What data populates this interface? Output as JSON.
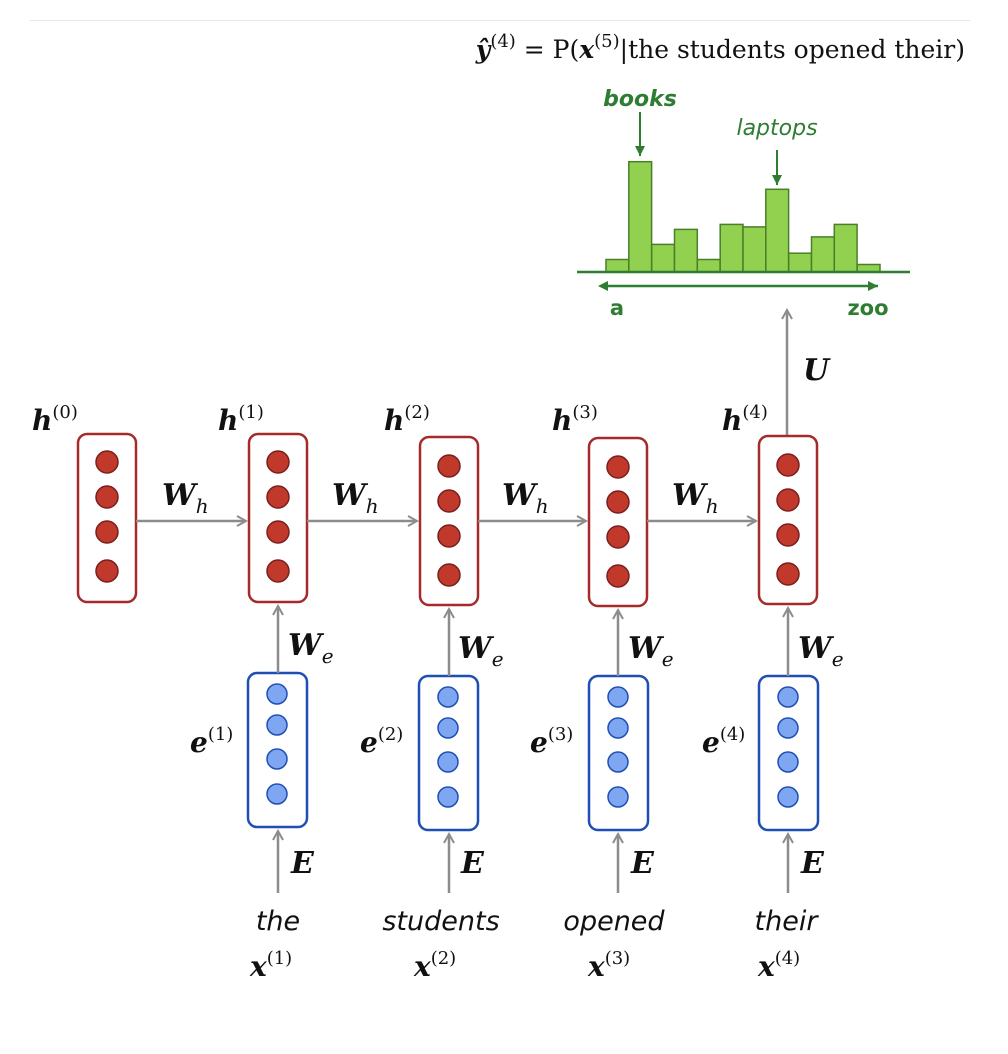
{
  "title": {
    "yhat": "ŷ",
    "yhat_sup": "(4)",
    "eq": " = P(",
    "x": "x",
    "x_sup": "(5)",
    "rest": "|the students opened their)"
  },
  "histogram": {
    "peak_labels": [
      "books",
      "laptops"
    ],
    "axis_start": "a",
    "axis_end": "zoo",
    "bar_values": [
      0.1,
      0.88,
      0.22,
      0.34,
      0.1,
      0.38,
      0.36,
      0.66,
      0.15,
      0.28,
      0.38,
      0.06
    ]
  },
  "output_matrix": "U",
  "recurrent_matrix": "W",
  "recurrent_matrix_sub": "h",
  "input_matrix": "W",
  "input_matrix_sub": "e",
  "embedding_matrix": "E",
  "hidden_labels": [
    {
      "base": "h",
      "sup": "(0)"
    },
    {
      "base": "h",
      "sup": "(1)"
    },
    {
      "base": "h",
      "sup": "(2)"
    },
    {
      "base": "h",
      "sup": "(3)"
    },
    {
      "base": "h",
      "sup": "(4)"
    }
  ],
  "embedding_labels": [
    {
      "base": "e",
      "sup": "(1)"
    },
    {
      "base": "e",
      "sup": "(2)"
    },
    {
      "base": "e",
      "sup": "(3)"
    },
    {
      "base": "e",
      "sup": "(4)"
    }
  ],
  "words": [
    "the",
    "students",
    "opened",
    "their"
  ],
  "input_labels": [
    {
      "base": "x",
      "sup": "(1)"
    },
    {
      "base": "x",
      "sup": "(2)"
    },
    {
      "base": "x",
      "sup": "(3)"
    },
    {
      "base": "x",
      "sup": "(4)"
    }
  ],
  "colors": {
    "hidden_border": "#a52a2a",
    "hidden_dot": "#c0392b",
    "embed_border": "#1f4fb5",
    "embed_dot": "#7fa6f0",
    "bar_fill": "#92d050",
    "bar_stroke": "#4a7f2a",
    "hist_text": "#2e7d32",
    "arrow": "#8c8c8c"
  }
}
